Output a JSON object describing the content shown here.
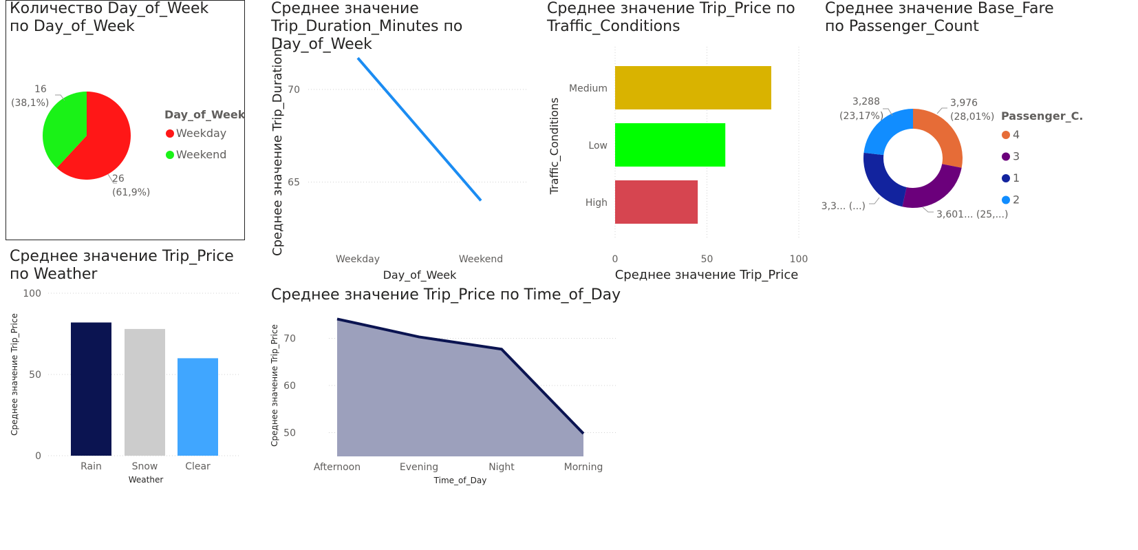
{
  "palette": {
    "weekday": "#FF1717",
    "weekend": "#1AF217",
    "line_blue": "#1B8CF2",
    "medium": "#D9B300",
    "low": "#00FF00",
    "high": "#D64550",
    "p4": "#E66C37",
    "p3": "#6B007B",
    "p1": "#12239E",
    "p2": "#118DFF",
    "rain": "#0B1451",
    "snow": "#CCCCCC",
    "clear": "#40A6FF",
    "area_fill": "#9CA0BC",
    "area_line": "#0B1451"
  },
  "pie_dow": {
    "title": "Количество Day_of_Week по Day_of_Week",
    "legend_title": "Day_of_Week",
    "chart_data": {
      "type": "pie",
      "title": "Количество Day_of_Week по Day_of_Week",
      "categories": [
        "Weekday",
        "Weekend"
      ],
      "values": [
        26,
        16
      ],
      "labels": [
        [
          "26",
          "(61,9%)"
        ],
        [
          "16",
          "(38,1%)"
        ]
      ],
      "legend": [
        "Weekday",
        "Weekend"
      ]
    }
  },
  "line_duration": {
    "title": "Среднее значение Trip_Duration_Minutes по Day_of_Week",
    "chart_data": {
      "type": "line",
      "title": "Среднее значение Trip_Duration_Minutes по Day_of_Week",
      "categories": [
        "Weekday",
        "Weekend"
      ],
      "values": [
        71.7,
        64.0
      ],
      "ylim": [
        61.6,
        72.3
      ],
      "yticks": [
        65,
        70
      ],
      "xlabel": "Day_of_Week",
      "ylabel": "Среднее значение Trip_Duration...",
      "grid": true
    }
  },
  "bar_traffic": {
    "title": "Среднее значение Trip_Price по Traffic_Conditions",
    "chart_data": {
      "type": "bar",
      "orientation": "horizontal",
      "title": "Среднее значение Trip_Price по Traffic_Conditions",
      "categories": [
        "Medium",
        "Low",
        "High"
      ],
      "values": [
        85,
        60,
        45
      ],
      "xlim": [
        0,
        100
      ],
      "xticks": [
        0,
        50,
        100
      ],
      "xlabel": "Среднее значение Trip_Price",
      "ylabel": "Traffic_Conditions",
      "grid": true
    }
  },
  "donut_pass": {
    "title": "Среднее значение Base_Fare по Passenger_Count",
    "legend_title": "Passenger_C...",
    "chart_data": {
      "type": "pie",
      "subtype": "donut",
      "title": "Среднее значение Base_Fare по Passenger_Count",
      "categories": [
        "4",
        "3",
        "1",
        "2"
      ],
      "values": [
        3.976,
        3.601,
        3.3,
        3.288
      ],
      "labels": [
        [
          "3,976",
          "(28,01%)"
        ],
        [
          "3,601... (25,...)"
        ],
        [
          "3,3... (...)"
        ],
        [
          "3,288",
          "(23,17%)"
        ]
      ],
      "legend": [
        "4",
        "3",
        "1",
        "2"
      ]
    }
  },
  "bar_weather": {
    "title": "Среднее значение Trip_Price по Weather",
    "chart_data": {
      "type": "bar",
      "title": "Среднее значение Trip_Price по Weather",
      "categories": [
        "Rain",
        "Snow",
        "Clear"
      ],
      "values": [
        82,
        78,
        60
      ],
      "ylim": [
        0,
        100
      ],
      "yticks": [
        0,
        50,
        100
      ],
      "xlabel": "Weather",
      "ylabel": "Среднее значение Trip_Price",
      "grid": true
    }
  },
  "area_time": {
    "title": "Среднее значение Trip_Price по Time_of_Day",
    "chart_data": {
      "type": "area",
      "title": "Среднее значение Trip_Price по Time_of_Day",
      "categories": [
        "Afternoon",
        "Evening",
        "Night",
        "Morning"
      ],
      "values": [
        74.1,
        70.3,
        67.7,
        49.8
      ],
      "ylim": [
        45,
        75
      ],
      "yticks": [
        50,
        60,
        70
      ],
      "xlabel": "Time_of_Day",
      "ylabel": "Среднее значение Trip_Price",
      "grid": true
    }
  }
}
